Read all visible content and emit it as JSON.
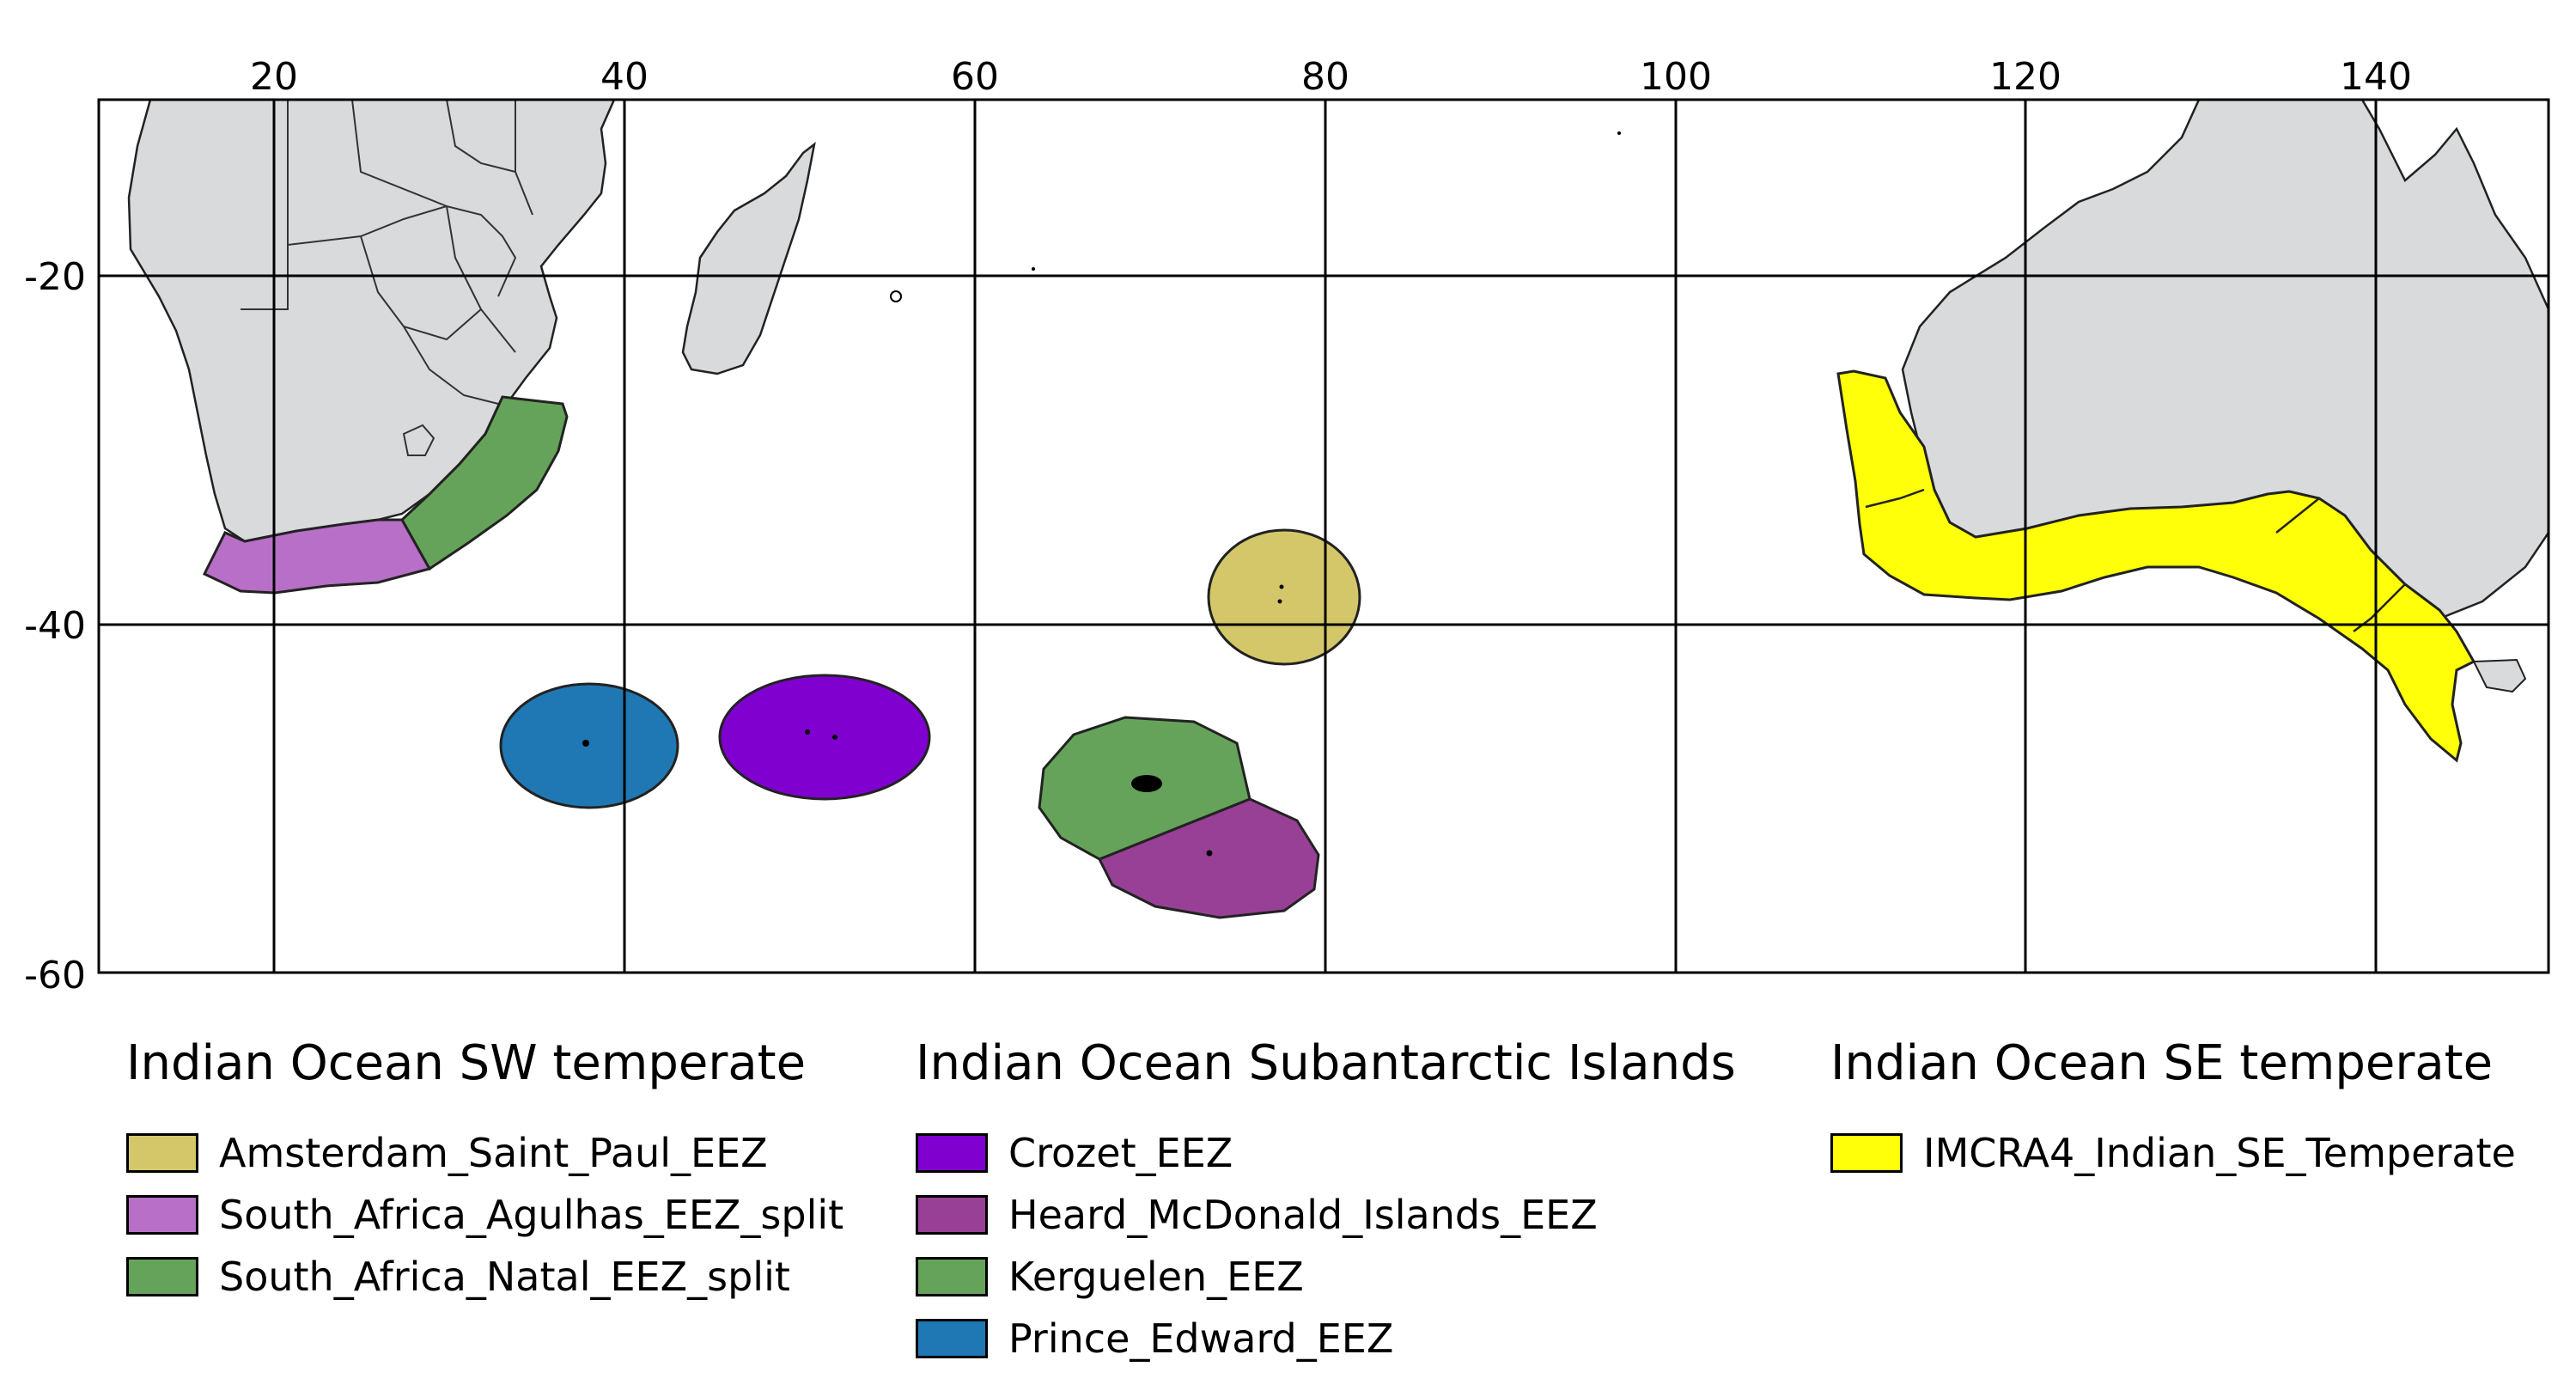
{
  "axes": {
    "x_ticks": [
      "20",
      "40",
      "60",
      "80",
      "100",
      "120",
      "140"
    ],
    "y_ticks": [
      "-20",
      "-40",
      "-60"
    ]
  },
  "colors": {
    "land": "#d9dadc",
    "amsterdam": "#d4c76a",
    "agulhas": "#b86fc7",
    "natal": "#66a35a",
    "crozet": "#8000d0",
    "heard": "#984096",
    "kerguelen": "#66a35a",
    "prince_edward": "#1f78b4",
    "imcra": "#ffff0a"
  },
  "legend": {
    "sw": {
      "title": "Indian Ocean SW temperate",
      "items": [
        {
          "label": "Amsterdam_Saint_Paul_EEZ",
          "color": "#d4c76a"
        },
        {
          "label": "South_Africa_Agulhas_EEZ_split",
          "color": "#b86fc7"
        },
        {
          "label": "South_Africa_Natal_EEZ_split",
          "color": "#66a35a"
        }
      ]
    },
    "sub": {
      "title": "Indian Ocean Subantarctic Islands",
      "items": [
        {
          "label": "Crozet_EEZ",
          "color": "#8000d0"
        },
        {
          "label": "Heard_McDonald_Islands_EEZ",
          "color": "#984096"
        },
        {
          "label": "Kerguelen_EEZ",
          "color": "#66a35a"
        },
        {
          "label": "Prince_Edward_EEZ",
          "color": "#1f78b4"
        }
      ]
    },
    "se": {
      "title": "Indian Ocean SE temperate",
      "items": [
        {
          "label": "IMCRA4_Indian_SE_Temperate",
          "color": "#ffff0a"
        }
      ]
    }
  }
}
